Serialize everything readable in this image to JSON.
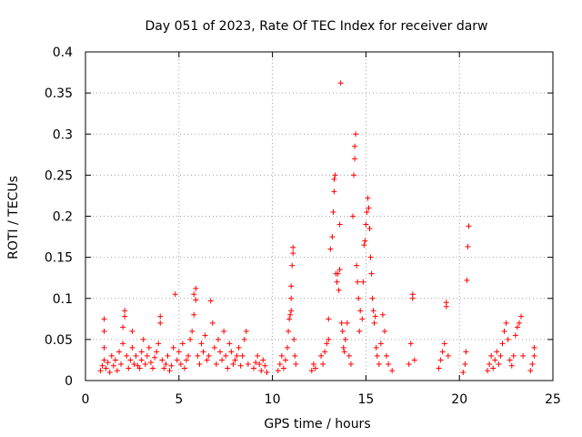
{
  "chart_data": {
    "type": "scatter",
    "title": "Day 051 of 2023, Rate Of TEC Index for receiver darw",
    "xlabel": "GPS time / hours",
    "ylabel": "ROTI / TECUs",
    "xlim": [
      0,
      25
    ],
    "ylim": [
      0,
      0.4
    ],
    "x_ticks": [
      0,
      5,
      10,
      15,
      20,
      25
    ],
    "x_tick_labels": [
      "0",
      "5",
      "10",
      "15",
      "20",
      "25"
    ],
    "y_ticks": [
      0,
      0.05,
      0.1,
      0.15,
      0.2,
      0.25,
      0.3,
      0.35,
      0.4
    ],
    "y_tick_labels": [
      "0",
      "0.05",
      "0.1",
      "0.15",
      "0.2",
      "0.25",
      "0.3",
      "0.35",
      "0.4"
    ],
    "grid": true,
    "marker": "plus",
    "color": "#ff0000",
    "series": [
      {
        "points": [
          [
            0.8,
            0.012
          ],
          [
            0.9,
            0.018
          ],
          [
            1.0,
            0.025
          ],
          [
            1.0,
            0.04
          ],
          [
            1.0,
            0.06
          ],
          [
            1.0,
            0.075
          ],
          [
            1.1,
            0.015
          ],
          [
            1.2,
            0.022
          ],
          [
            1.3,
            0.01
          ],
          [
            1.4,
            0.03
          ],
          [
            1.5,
            0.018
          ],
          [
            1.6,
            0.025
          ],
          [
            1.7,
            0.012
          ],
          [
            1.8,
            0.035
          ],
          [
            1.9,
            0.02
          ],
          [
            2.0,
            0.045
          ],
          [
            2.0,
            0.065
          ],
          [
            2.1,
            0.085
          ],
          [
            2.1,
            0.078
          ],
          [
            2.2,
            0.03
          ],
          [
            2.3,
            0.015
          ],
          [
            2.4,
            0.025
          ],
          [
            2.5,
            0.04
          ],
          [
            2.5,
            0.06
          ],
          [
            2.6,
            0.02
          ],
          [
            2.7,
            0.03
          ],
          [
            2.8,
            0.018
          ],
          [
            2.9,
            0.015
          ],
          [
            3.0,
            0.025
          ],
          [
            3.0,
            0.035
          ],
          [
            3.1,
            0.05
          ],
          [
            3.2,
            0.02
          ],
          [
            3.3,
            0.03
          ],
          [
            3.4,
            0.04
          ],
          [
            3.5,
            0.022
          ],
          [
            3.6,
            0.015
          ],
          [
            3.7,
            0.028
          ],
          [
            3.8,
            0.035
          ],
          [
            3.9,
            0.045
          ],
          [
            4.0,
            0.07
          ],
          [
            4.0,
            0.078
          ],
          [
            4.1,
            0.025
          ],
          [
            4.2,
            0.015
          ],
          [
            4.3,
            0.02
          ],
          [
            4.4,
            0.03
          ],
          [
            4.5,
            0.012
          ],
          [
            4.6,
            0.018
          ],
          [
            4.7,
            0.04
          ],
          [
            4.8,
            0.105
          ],
          [
            4.9,
            0.025
          ],
          [
            5.0,
            0.035
          ],
          [
            5.1,
            0.02
          ],
          [
            5.2,
            0.045
          ],
          [
            5.3,
            0.015
          ],
          [
            5.4,
            0.025
          ],
          [
            5.5,
            0.03
          ],
          [
            5.6,
            0.05
          ],
          [
            5.7,
            0.06
          ],
          [
            5.8,
            0.08
          ],
          [
            5.8,
            0.105
          ],
          [
            5.9,
            0.112
          ],
          [
            5.9,
            0.098
          ],
          [
            6.0,
            0.03
          ],
          [
            6.1,
            0.02
          ],
          [
            6.2,
            0.045
          ],
          [
            6.3,
            0.035
          ],
          [
            6.4,
            0.055
          ],
          [
            6.5,
            0.025
          ],
          [
            6.6,
            0.03
          ],
          [
            6.7,
            0.097
          ],
          [
            6.8,
            0.07
          ],
          [
            6.9,
            0.04
          ],
          [
            7.0,
            0.02
          ],
          [
            7.1,
            0.05
          ],
          [
            7.2,
            0.035
          ],
          [
            7.3,
            0.025
          ],
          [
            7.4,
            0.06
          ],
          [
            7.5,
            0.03
          ],
          [
            7.6,
            0.015
          ],
          [
            7.7,
            0.045
          ],
          [
            7.8,
            0.035
          ],
          [
            7.9,
            0.02
          ],
          [
            8.0,
            0.025
          ],
          [
            8.1,
            0.03
          ],
          [
            8.2,
            0.04
          ],
          [
            8.3,
            0.018
          ],
          [
            8.4,
            0.03
          ],
          [
            8.5,
            0.05
          ],
          [
            8.6,
            0.06
          ],
          [
            8.7,
            0.02
          ],
          [
            9.0,
            0.015
          ],
          [
            9.1,
            0.022
          ],
          [
            9.2,
            0.03
          ],
          [
            9.3,
            0.02
          ],
          [
            9.4,
            0.012
          ],
          [
            9.5,
            0.025
          ],
          [
            9.6,
            0.018
          ],
          [
            9.7,
            0.01
          ],
          [
            10.3,
            0.012
          ],
          [
            10.4,
            0.02
          ],
          [
            10.5,
            0.03
          ],
          [
            10.6,
            0.015
          ],
          [
            10.7,
            0.025
          ],
          [
            10.8,
            0.04
          ],
          [
            10.85,
            0.06
          ],
          [
            10.9,
            0.075
          ],
          [
            10.95,
            0.08
          ],
          [
            11.0,
            0.085
          ],
          [
            11.0,
            0.1
          ],
          [
            11.0,
            0.115
          ],
          [
            11.05,
            0.14
          ],
          [
            11.1,
            0.155
          ],
          [
            11.1,
            0.162
          ],
          [
            11.15,
            0.05
          ],
          [
            11.2,
            0.03
          ],
          [
            11.25,
            0.02
          ],
          [
            12.1,
            0.012
          ],
          [
            12.2,
            0.02
          ],
          [
            12.3,
            0.015
          ],
          [
            12.6,
            0.03
          ],
          [
            12.7,
            0.02
          ],
          [
            12.8,
            0.035
          ],
          [
            12.9,
            0.045
          ],
          [
            13.0,
            0.075
          ],
          [
            13.0,
            0.05
          ],
          [
            13.1,
            0.16
          ],
          [
            13.2,
            0.175
          ],
          [
            13.25,
            0.205
          ],
          [
            13.3,
            0.23
          ],
          [
            13.3,
            0.245
          ],
          [
            13.35,
            0.25
          ],
          [
            13.4,
            0.13
          ],
          [
            13.45,
            0.12
          ],
          [
            13.5,
            0.13
          ],
          [
            13.55,
            0.11
          ],
          [
            13.6,
            0.135
          ],
          [
            13.6,
            0.19
          ],
          [
            13.65,
            0.362
          ],
          [
            13.7,
            0.07
          ],
          [
            13.75,
            0.06
          ],
          [
            13.8,
            0.04
          ],
          [
            13.85,
            0.035
          ],
          [
            13.9,
            0.05
          ],
          [
            14.0,
            0.07
          ],
          [
            14.1,
            0.03
          ],
          [
            14.2,
            0.02
          ],
          [
            14.3,
            0.2
          ],
          [
            14.35,
            0.25
          ],
          [
            14.4,
            0.27
          ],
          [
            14.4,
            0.285
          ],
          [
            14.45,
            0.3
          ],
          [
            14.5,
            0.14
          ],
          [
            14.55,
            0.12
          ],
          [
            14.6,
            0.1
          ],
          [
            14.65,
            0.06
          ],
          [
            14.7,
            0.085
          ],
          [
            14.8,
            0.075
          ],
          [
            14.85,
            0.12
          ],
          [
            14.9,
            0.165
          ],
          [
            14.95,
            0.17
          ],
          [
            15.0,
            0.19
          ],
          [
            15.05,
            0.205
          ],
          [
            15.1,
            0.222
          ],
          [
            15.15,
            0.21
          ],
          [
            15.2,
            0.185
          ],
          [
            15.25,
            0.15
          ],
          [
            15.3,
            0.13
          ],
          [
            15.35,
            0.1
          ],
          [
            15.4,
            0.085
          ],
          [
            15.45,
            0.07
          ],
          [
            15.5,
            0.078
          ],
          [
            15.55,
            0.04
          ],
          [
            15.6,
            0.03
          ],
          [
            15.7,
            0.02
          ],
          [
            15.8,
            0.045
          ],
          [
            15.9,
            0.08
          ],
          [
            16.0,
            0.06
          ],
          [
            16.1,
            0.03
          ],
          [
            16.2,
            0.02
          ],
          [
            16.4,
            0.012
          ],
          [
            17.3,
            0.02
          ],
          [
            17.4,
            0.045
          ],
          [
            17.5,
            0.1
          ],
          [
            17.5,
            0.105
          ],
          [
            17.6,
            0.025
          ],
          [
            18.9,
            0.015
          ],
          [
            19.0,
            0.025
          ],
          [
            19.1,
            0.035
          ],
          [
            19.2,
            0.045
          ],
          [
            19.3,
            0.09
          ],
          [
            19.3,
            0.095
          ],
          [
            19.4,
            0.03
          ],
          [
            20.2,
            0.01
          ],
          [
            20.3,
            0.02
          ],
          [
            20.35,
            0.035
          ],
          [
            20.4,
            0.122
          ],
          [
            20.45,
            0.163
          ],
          [
            20.5,
            0.188
          ],
          [
            21.5,
            0.012
          ],
          [
            21.6,
            0.02
          ],
          [
            21.7,
            0.03
          ],
          [
            21.8,
            0.015
          ],
          [
            21.9,
            0.025
          ],
          [
            22.0,
            0.035
          ],
          [
            22.1,
            0.02
          ],
          [
            22.2,
            0.03
          ],
          [
            22.3,
            0.045
          ],
          [
            22.4,
            0.06
          ],
          [
            22.5,
            0.07
          ],
          [
            22.6,
            0.05
          ],
          [
            22.7,
            0.025
          ],
          [
            22.8,
            0.018
          ],
          [
            22.9,
            0.03
          ],
          [
            23.0,
            0.055
          ],
          [
            23.1,
            0.065
          ],
          [
            23.2,
            0.07
          ],
          [
            23.3,
            0.078
          ],
          [
            23.4,
            0.03
          ],
          [
            23.8,
            0.012
          ],
          [
            23.9,
            0.02
          ],
          [
            24.0,
            0.03
          ],
          [
            24.0,
            0.04
          ]
        ]
      }
    ]
  }
}
